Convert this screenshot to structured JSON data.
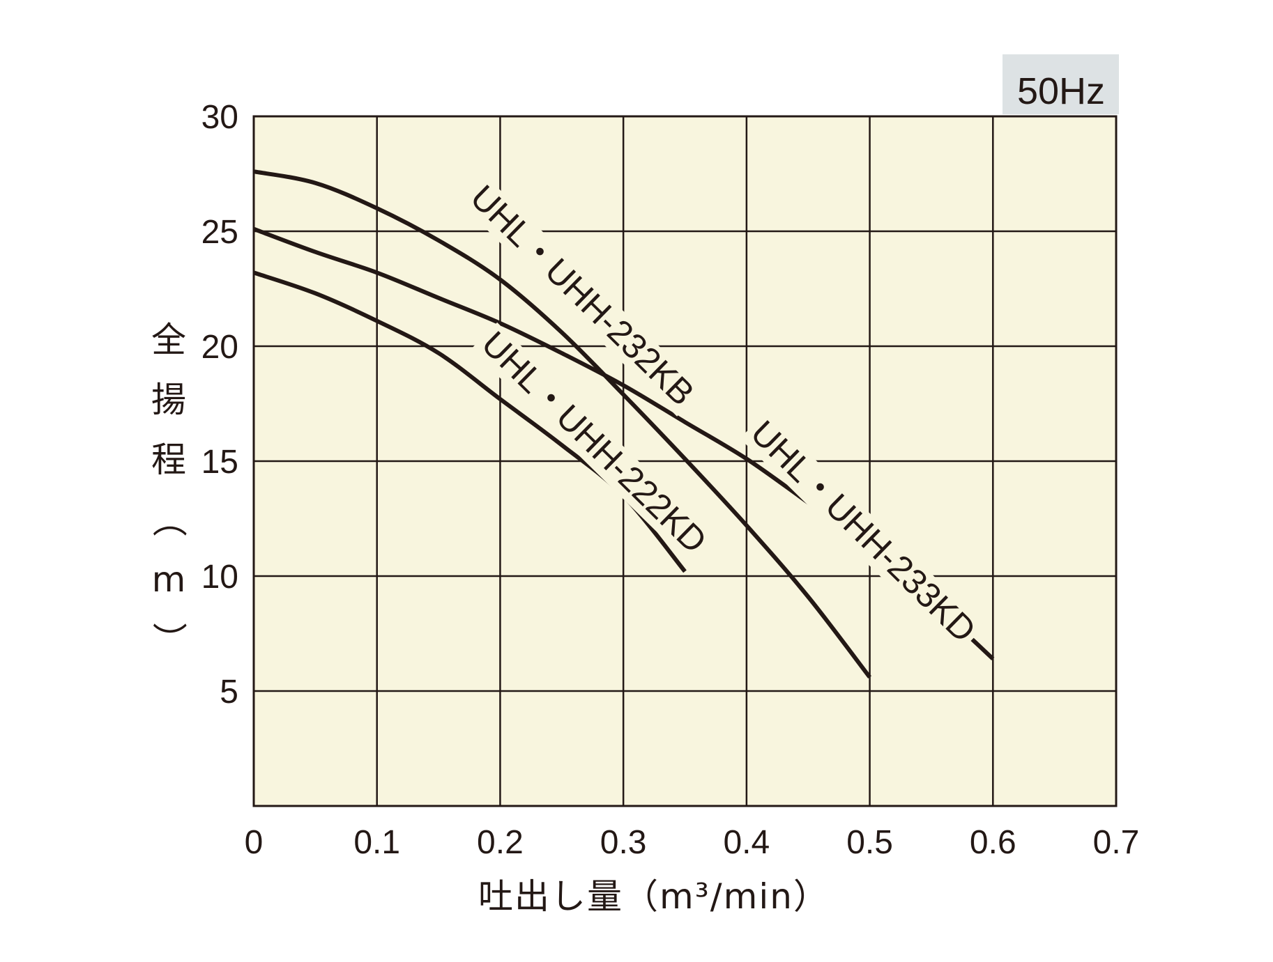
{
  "chart_data": {
    "type": "line",
    "frequency_badge": "50Hz",
    "xlabel": "吐出し量（m³/min）",
    "ylabel": "全揚程（m）",
    "xlim": [
      0,
      0.7
    ],
    "ylim": [
      0,
      30
    ],
    "x_ticks": [
      "0",
      "0.1",
      "0.2",
      "0.3",
      "0.4",
      "0.5",
      "0.6",
      "0.7"
    ],
    "y_ticks": [
      "5",
      "10",
      "15",
      "20",
      "25",
      "30"
    ],
    "grid": true,
    "series": [
      {
        "name": "UHL・UHH-232KB",
        "x": [
          0,
          0.05,
          0.1,
          0.15,
          0.2,
          0.25,
          0.3,
          0.35,
          0.4,
          0.45,
          0.5
        ],
        "y": [
          27.6,
          27.1,
          26.0,
          24.6,
          22.9,
          20.6,
          17.9,
          15.1,
          12.2,
          9.1,
          5.6
        ]
      },
      {
        "name": "UHL・UHH-233KD",
        "x": [
          0,
          0.05,
          0.1,
          0.15,
          0.2,
          0.25,
          0.3,
          0.35,
          0.4,
          0.45,
          0.5,
          0.55,
          0.6
        ],
        "y": [
          25.1,
          24.1,
          23.2,
          22.1,
          21.0,
          19.7,
          18.3,
          16.7,
          15.1,
          13.2,
          11.3,
          8.9,
          6.4
        ]
      },
      {
        "name": "UHL・UHH-222KD",
        "x": [
          0,
          0.05,
          0.1,
          0.15,
          0.2,
          0.25,
          0.3,
          0.35
        ],
        "y": [
          23.2,
          22.3,
          21.1,
          19.7,
          17.7,
          15.7,
          13.5,
          10.2
        ]
      }
    ]
  }
}
